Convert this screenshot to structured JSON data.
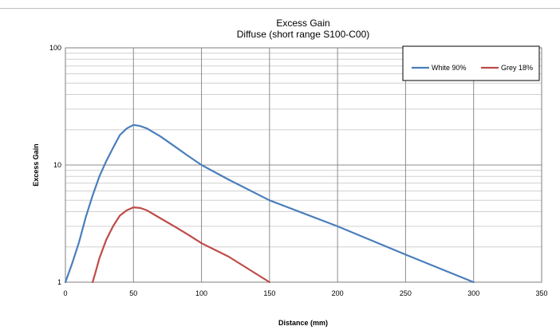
{
  "chart_data": {
    "type": "line",
    "title": "Excess Gain",
    "subtitle": "Diffuse (short range S100-C00)",
    "xlabel": "Distance (mm)",
    "ylabel": "Excess Gain",
    "xlim": [
      0,
      350
    ],
    "ylim": [
      1,
      100
    ],
    "yscale": "log",
    "x_ticks": [
      0,
      50,
      100,
      150,
      200,
      250,
      300,
      350
    ],
    "y_ticks": [
      1,
      10,
      100
    ],
    "grid": true,
    "legend_position": "top-right",
    "series": [
      {
        "name": "White 90%",
        "color": "#4a7ebb",
        "points": [
          [
            0,
            1
          ],
          [
            5,
            1.45
          ],
          [
            10,
            2.2
          ],
          [
            15,
            3.6
          ],
          [
            20,
            5.5
          ],
          [
            25,
            8
          ],
          [
            30,
            10.8
          ],
          [
            35,
            14
          ],
          [
            40,
            18
          ],
          [
            45,
            20.5
          ],
          [
            50,
            22
          ],
          [
            55,
            21.5
          ],
          [
            60,
            20.5
          ],
          [
            70,
            17.5
          ],
          [
            80,
            14.5
          ],
          [
            90,
            12
          ],
          [
            100,
            10
          ],
          [
            120,
            7.5
          ],
          [
            150,
            5
          ],
          [
            200,
            3
          ],
          [
            250,
            1.72
          ],
          [
            300,
            1
          ]
        ]
      },
      {
        "name": "Grey 18%",
        "color": "#be4b48",
        "points": [
          [
            20,
            1
          ],
          [
            22,
            1.2
          ],
          [
            25,
            1.6
          ],
          [
            30,
            2.3
          ],
          [
            35,
            3
          ],
          [
            40,
            3.7
          ],
          [
            45,
            4.1
          ],
          [
            50,
            4.35
          ],
          [
            55,
            4.3
          ],
          [
            60,
            4.1
          ],
          [
            70,
            3.5
          ],
          [
            80,
            3
          ],
          [
            90,
            2.55
          ],
          [
            100,
            2.15
          ],
          [
            120,
            1.65
          ],
          [
            150,
            1
          ]
        ]
      }
    ]
  }
}
